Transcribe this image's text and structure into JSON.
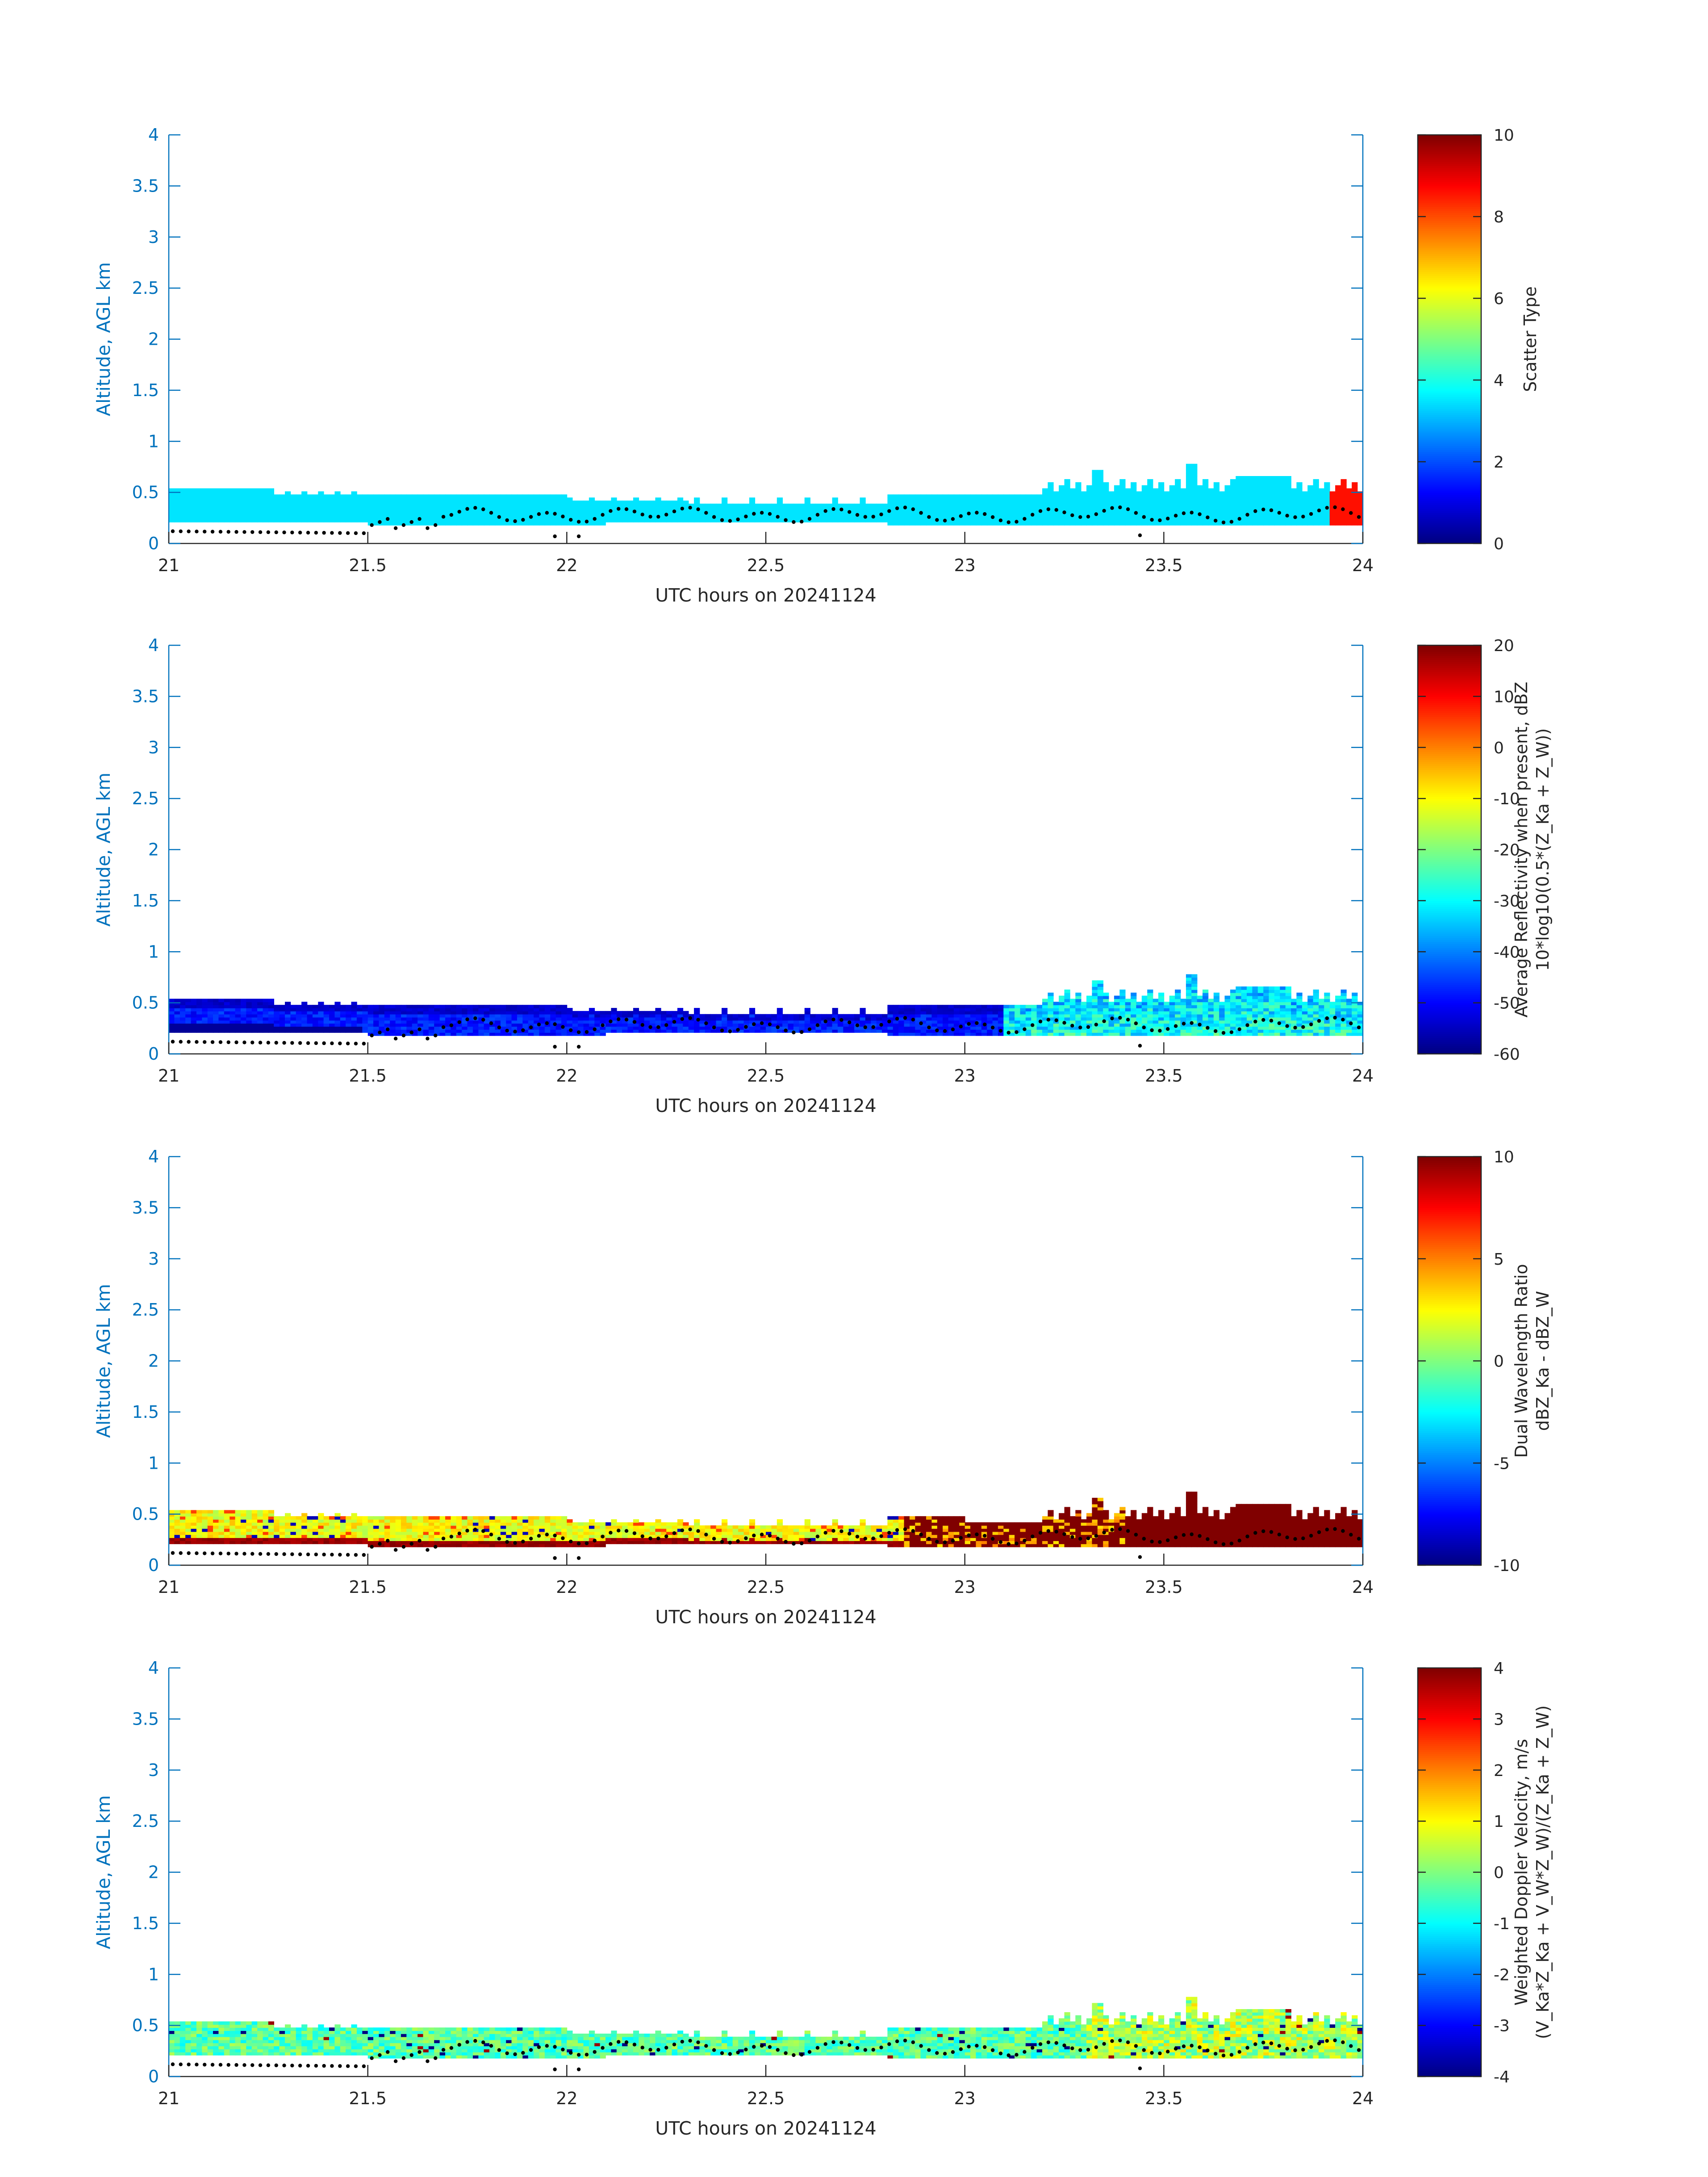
{
  "chart_data": [
    {
      "type": "heatmap",
      "ylabel": "Altitude, AGL km",
      "xlabel": "UTC hours on 20241124",
      "xlim": [
        21,
        24
      ],
      "ylim": [
        0,
        4
      ],
      "x_ticks": [
        "21",
        "21.5",
        "22",
        "22.5",
        "23",
        "23.5",
        "24"
      ],
      "y_ticks": [
        "0",
        "0.5",
        "1",
        "1.5",
        "2",
        "2.5",
        "3",
        "3.5",
        "4"
      ],
      "colorbar": {
        "label_lines": [
          "Scatter Type"
        ],
        "range": [
          0,
          10
        ],
        "ticks": [
          "0",
          "2",
          "4",
          "6",
          "8",
          "10"
        ]
      },
      "field": "scatter_type",
      "notes": "Layer between ~0.2 and 0.5 km, value ~3.5 (cyan); value ~8.5 near 23.9-24 h"
    },
    {
      "type": "heatmap",
      "ylabel": "Altitude, AGL km",
      "xlabel": "UTC hours on 20241124",
      "xlim": [
        21,
        24
      ],
      "ylim": [
        0,
        4
      ],
      "x_ticks": [
        "21",
        "21.5",
        "22",
        "22.5",
        "23",
        "23.5",
        "24"
      ],
      "y_ticks": [
        "0",
        "0.5",
        "1",
        "1.5",
        "2",
        "2.5",
        "3",
        "3.5",
        "4"
      ],
      "colorbar": {
        "label_lines": [
          "Average Reflectivity when present, dBZ",
          "10*log10(0.5*(Z_Ka + Z_W))"
        ],
        "range": [
          -60,
          20
        ],
        "ticks": [
          "-60",
          "-50",
          "-40",
          "-30",
          "-20",
          "-10",
          "0",
          "10",
          "20"
        ]
      },
      "field": "reflectivity",
      "notes": "Values mostly -55 to -40 dBZ before 23 h, -40 to -25 dBZ after"
    },
    {
      "type": "heatmap",
      "ylabel": "Altitude, AGL km",
      "xlabel": "UTC hours on 20241124",
      "xlim": [
        21,
        24
      ],
      "ylim": [
        0,
        4
      ],
      "x_ticks": [
        "21",
        "21.5",
        "22",
        "22.5",
        "23",
        "23.5",
        "24"
      ],
      "y_ticks": [
        "0",
        "0.5",
        "1",
        "1.5",
        "2",
        "2.5",
        "3",
        "3.5",
        "4"
      ],
      "colorbar": {
        "label_lines": [
          "Dual Wavelength Ratio",
          "dBZ_Ka - dBZ_W"
        ],
        "range": [
          -10,
          10
        ],
        "ticks": [
          "-10",
          "-5",
          "0",
          "5",
          "10"
        ]
      },
      "field": "dwr",
      "notes": "Values ~0-3 dB before 22.8 h, saturating at 10 dB after"
    },
    {
      "type": "heatmap",
      "ylabel": "Altitude, AGL km",
      "xlabel": "UTC hours on 20241124",
      "xlim": [
        21,
        24
      ],
      "ylim": [
        0,
        4
      ],
      "x_ticks": [
        "21",
        "21.5",
        "22",
        "22.5",
        "23",
        "23.5",
        "24"
      ],
      "y_ticks": [
        "0",
        "0.5",
        "1",
        "1.5",
        "2",
        "2.5",
        "3",
        "3.5",
        "4"
      ],
      "colorbar": {
        "label_lines": [
          "Weighted Doppler Velocity, m/s",
          "(V_Ka*Z_Ka + V_W*Z_W)/(Z_Ka + Z_W)"
        ],
        "range": [
          -4,
          4
        ],
        "ticks": [
          "-4",
          "-3",
          "-2",
          "-1",
          "0",
          "1",
          "2",
          "3",
          "4"
        ]
      },
      "field": "velocity",
      "notes": "Values mostly -0.5 to 0.5 m/s, up to ~1 m/s after 23.3 h"
    }
  ]
}
